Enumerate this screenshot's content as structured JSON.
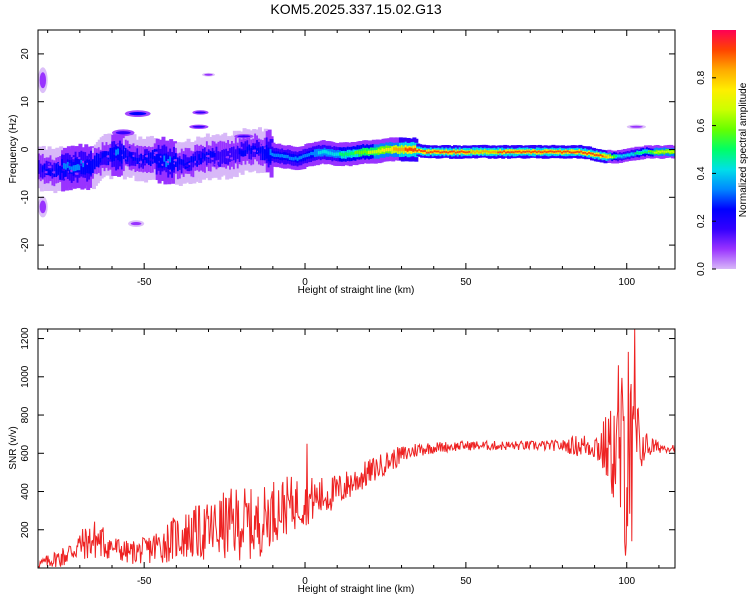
{
  "title": "KOM5.2025.337.15.02.G13",
  "colors": {
    "snr_line": "#ee2222",
    "axis": "#000000",
    "colormap": [
      "#d8b8f8",
      "#9933ff",
      "#3300ff",
      "#0000ff",
      "#0088ff",
      "#00e0e8",
      "#00ff66",
      "#66ff00",
      "#ccff00",
      "#ffee00",
      "#ffaa00",
      "#ff4400",
      "#ff0055"
    ]
  },
  "chart_data": [
    {
      "type": "heatmap",
      "name": "spectrogram",
      "xlabel": "Height of straight line (km)",
      "ylabel": "Frequency (Hz)",
      "xlim": [
        -83,
        115
      ],
      "ylim": [
        -25,
        25
      ],
      "xticks": [
        -50,
        0,
        50,
        100
      ],
      "xtick_labels": [
        "-50",
        "0",
        "50",
        "100"
      ],
      "yticks": [
        -20,
        -10,
        0,
        10,
        20
      ],
      "ytick_labels": [
        "-20",
        "-10",
        "0",
        "10",
        "20"
      ],
      "colorbar": {
        "label": "Normalized spectral amplitude",
        "range": [
          0,
          1
        ],
        "ticks": [
          0.0,
          0.2,
          0.4,
          0.6,
          0.8
        ],
        "tick_labels": [
          "0.0",
          "0.2",
          "0.4",
          "0.6",
          "0.8"
        ]
      },
      "ridge": {
        "x": [
          -82,
          -78,
          -74,
          -70,
          -66,
          -62,
          -58,
          -54,
          -50,
          -46,
          -42,
          -38,
          -34,
          -30,
          -26,
          -22,
          -18,
          -14,
          -10,
          -6,
          -2,
          2,
          6,
          10,
          14,
          18,
          22,
          26,
          30,
          34,
          38,
          42,
          46,
          50,
          54,
          58,
          62,
          66,
          70,
          74,
          78,
          82,
          86,
          90,
          94,
          98,
          102,
          106,
          110,
          114
        ],
        "freq": [
          -4.0,
          -4.5,
          -4.0,
          -3.5,
          -3.5,
          -1.5,
          -1.0,
          -1.5,
          -2.0,
          -2.0,
          -2.5,
          -3.0,
          -2.5,
          -1.5,
          -1.5,
          -1.0,
          0.0,
          0.0,
          -1.0,
          -1.5,
          -2.0,
          -1.0,
          -0.5,
          -1.0,
          -1.0,
          -0.5,
          -0.5,
          0.0,
          0.0,
          0.0,
          -0.5,
          -0.5,
          -0.5,
          -0.5,
          -0.5,
          -0.5,
          -0.5,
          -0.5,
          -0.5,
          -0.5,
          -0.5,
          -0.5,
          -0.5,
          -1.0,
          -1.5,
          -1.5,
          -1.0,
          -0.5,
          -0.5,
          -0.5
        ],
        "amplitude": [
          0.2,
          0.25,
          0.3,
          0.3,
          0.28,
          0.25,
          0.3,
          0.25,
          0.25,
          0.28,
          0.3,
          0.25,
          0.25,
          0.22,
          0.2,
          0.18,
          0.25,
          0.25,
          0.3,
          0.35,
          0.32,
          0.35,
          0.4,
          0.45,
          0.5,
          0.6,
          0.65,
          0.75,
          0.85,
          0.95,
          0.9,
          0.9,
          0.9,
          0.9,
          0.85,
          0.85,
          0.9,
          0.95,
          0.95,
          0.95,
          0.9,
          0.9,
          0.9,
          0.95,
          0.85,
          0.4,
          0.45,
          0.5,
          0.7,
          0.7
        ]
      },
      "patches": [
        {
          "x": [
            -60,
            -53
          ],
          "freq": [
            3.0,
            4.0
          ],
          "amplitude": 0.1
        },
        {
          "x": [
            -56,
            -48
          ],
          "freq": [
            7.0,
            8.0
          ],
          "amplitude": 0.12
        },
        {
          "x": [
            -35,
            -30
          ],
          "freq": [
            7.5,
            8.0
          ],
          "amplitude": 0.08
        },
        {
          "x": [
            -36,
            -30
          ],
          "freq": [
            4.5,
            5.0
          ],
          "amplitude": 0.08
        },
        {
          "x": [
            -32,
            -28
          ],
          "freq": [
            15.5,
            15.8
          ],
          "amplitude": 0.05
        },
        {
          "x": [
            -55,
            -50
          ],
          "freq": [
            -15.0,
            -16.0
          ],
          "amplitude": 0.05
        },
        {
          "x": [
            -83,
            -80
          ],
          "freq": [
            -10.0,
            -14.0
          ],
          "amplitude": 0.05
        },
        {
          "x": [
            -83,
            -80
          ],
          "freq": [
            12.0,
            17.0
          ],
          "amplitude": 0.04
        },
        {
          "x": [
            100,
            106
          ],
          "freq": [
            4.5,
            5.0
          ],
          "amplitude": 0.06
        },
        {
          "x": [
            -22,
            -16
          ],
          "freq": [
            2.5,
            3.0
          ],
          "amplitude": 0.1
        }
      ]
    },
    {
      "type": "line",
      "name": "snr",
      "xlabel": "Height of straight line (km)",
      "ylabel": "SNR (v/v)",
      "xlim": [
        -83,
        115
      ],
      "ylim": [
        0,
        1250
      ],
      "xticks": [
        -50,
        0,
        50,
        100
      ],
      "xtick_labels": [
        "-50",
        "0",
        "50",
        "100"
      ],
      "yticks": [
        200,
        400,
        600,
        800,
        1000,
        1200
      ],
      "ytick_labels": [
        "200",
        "400",
        "600",
        "800",
        "1000",
        "1200"
      ],
      "envelope": {
        "x": [
          -83,
          -75,
          -70,
          -65,
          -60,
          -55,
          -50,
          -45,
          -40,
          -35,
          -30,
          -25,
          -20,
          -15,
          -10,
          -5,
          0,
          5,
          10,
          15,
          20,
          25,
          30,
          35,
          40,
          50,
          60,
          70,
          80,
          85,
          90,
          95,
          98,
          100,
          102,
          105,
          110,
          115
        ],
        "mean": [
          20,
          60,
          120,
          150,
          110,
          80,
          90,
          120,
          160,
          180,
          190,
          220,
          240,
          220,
          300,
          330,
          350,
          370,
          400,
          450,
          500,
          550,
          590,
          620,
          630,
          640,
          640,
          640,
          640,
          640,
          640,
          620,
          580,
          550,
          600,
          640,
          630,
          630
        ],
        "noise": [
          20,
          60,
          80,
          110,
          70,
          60,
          70,
          100,
          120,
          140,
          160,
          180,
          200,
          180,
          170,
          150,
          130,
          110,
          90,
          80,
          70,
          60,
          50,
          40,
          30,
          25,
          25,
          25,
          30,
          60,
          70,
          220,
          450,
          550,
          400,
          90,
          30,
          20
        ]
      },
      "spikes": [
        {
          "x": 0.5,
          "y": 650
        },
        {
          "x": 102.5,
          "y": 1250
        },
        {
          "x": 100.5,
          "y": 1130
        },
        {
          "x": 97.5,
          "y": 1060
        },
        {
          "x": 99.5,
          "y": 65
        },
        {
          "x": 101.5,
          "y": 140
        }
      ]
    }
  ]
}
